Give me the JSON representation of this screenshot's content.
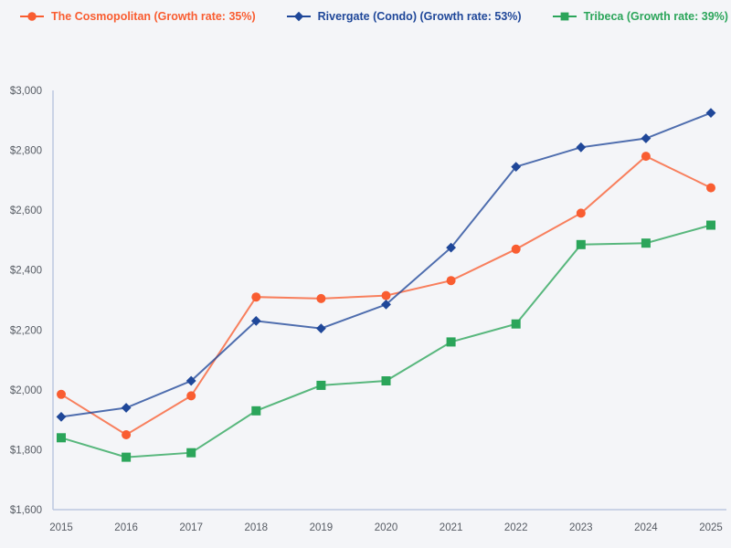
{
  "page": {
    "background_color": "#f4f5f8"
  },
  "axis": {
    "line_color": "#bcc8e0",
    "tick_text_color": "#565b63"
  },
  "chart_data": {
    "type": "line",
    "x": [
      2015,
      2016,
      2017,
      2018,
      2019,
      2020,
      2021,
      2022,
      2023,
      2024,
      2025
    ],
    "xtick_labels": [
      "2015",
      "2016",
      "2017",
      "2018",
      "2019",
      "2020",
      "2021",
      "2022",
      "2023",
      "2024",
      "2025"
    ],
    "ylim": [
      1600,
      3000
    ],
    "ytick_step": 200,
    "ytick_labels": [
      "$1,600",
      "$1,800",
      "$2,000",
      "$2,200",
      "$2,400",
      "$2,600",
      "$2,800",
      "$3,000"
    ],
    "title": "",
    "xlabel": "",
    "ylabel": "",
    "grid": false,
    "legend_position": "top",
    "series": [
      {
        "name": "The Cosmopolitan",
        "growth_rate": "35%",
        "label": "The Cosmopolitan (Growth rate: 35%)",
        "color": "#f95d31",
        "marker": "circle",
        "values": [
          1985,
          1850,
          1980,
          2310,
          2305,
          2315,
          2365,
          2470,
          2590,
          2780,
          2675
        ]
      },
      {
        "name": "Rivergate (Condo)",
        "growth_rate": "53%",
        "label": "Rivergate (Condo) (Growth rate: 53%)",
        "color": "#1f4799",
        "marker": "diamond",
        "values": [
          1910,
          1940,
          2030,
          2230,
          2205,
          2285,
          2475,
          2745,
          2810,
          2840,
          2925
        ]
      },
      {
        "name": "Tribeca",
        "growth_rate": "39%",
        "label": "Tribeca (Growth rate: 39%)",
        "color": "#2ba55a",
        "marker": "square",
        "values": [
          1840,
          1775,
          1790,
          1930,
          2015,
          2030,
          2160,
          2220,
          2485,
          2490,
          2550
        ]
      }
    ]
  }
}
